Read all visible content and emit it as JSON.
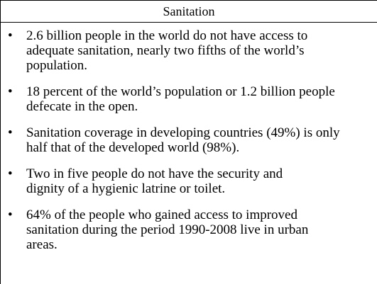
{
  "header": {
    "title": "Sanitation"
  },
  "items": [
    {
      "lines": [
        "2.6 billion people in the world do not have access to",
        "adequate sanitation, nearly two fifths of the world’s",
        "population."
      ]
    },
    {
      "lines": [
        "18 percent of the world’s population or 1.2 billion people",
        "defecate in the open."
      ]
    },
    {
      "lines": [
        "Sanitation coverage in developing countries (49%) is only",
        "half that of the developed world (98%)."
      ]
    },
    {
      "lines": [
        "Two in five people do not have the security and",
        "dignity of a hygienic latrine or toilet."
      ]
    },
    {
      "lines": [
        "64% of the people who gained access to improved",
        "sanitation during the period 1990-2008 live in urban",
        "areas."
      ]
    }
  ]
}
